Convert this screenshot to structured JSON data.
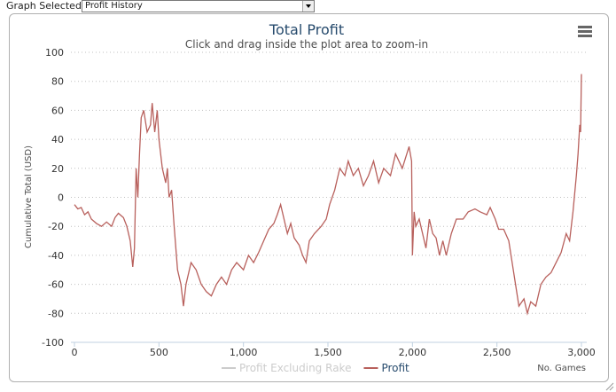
{
  "ui": {
    "label": "Graph Selected:",
    "selected": "Profit History"
  },
  "chart_data": {
    "type": "line",
    "title": "Total Profit",
    "subtitle": "Click and drag inside the plot area to zoom-in",
    "y_label": "Cumulative Total (USD)",
    "x_label": "No. Games",
    "xlim": [
      0,
      3000
    ],
    "ylim": [
      -100,
      100
    ],
    "xticks": [
      0,
      500,
      {
        "value": 1000,
        "label": "1,000"
      },
      {
        "value": 1500,
        "label": "1,500"
      },
      {
        "value": 2000,
        "label": "2,000"
      },
      {
        "value": 2500,
        "label": "2,500"
      },
      {
        "value": 3000,
        "label": "3,000"
      }
    ],
    "yticks": [
      -100,
      -80,
      -60,
      -40,
      -20,
      0,
      20,
      40,
      60,
      80,
      100
    ],
    "grid": true,
    "series": [
      {
        "name": "Profit Excluding Rake",
        "color": "#cccccc",
        "visible": false
      },
      {
        "name": "Profit",
        "color": "#b8605c",
        "visible": true,
        "x": [
          0,
          20,
          40,
          60,
          80,
          100,
          130,
          160,
          190,
          220,
          240,
          260,
          290,
          310,
          330,
          345,
          355,
          365,
          375,
          385,
          395,
          410,
          430,
          450,
          460,
          475,
          490,
          500,
          520,
          540,
          550,
          560,
          575,
          590,
          610,
          630,
          645,
          660,
          690,
          720,
          750,
          780,
          810,
          840,
          870,
          900,
          930,
          960,
          1000,
          1030,
          1060,
          1090,
          1120,
          1150,
          1180,
          1200,
          1220,
          1240,
          1260,
          1280,
          1300,
          1330,
          1350,
          1370,
          1390,
          1420,
          1460,
          1490,
          1510,
          1540,
          1570,
          1600,
          1620,
          1650,
          1680,
          1710,
          1740,
          1770,
          1800,
          1830,
          1870,
          1900,
          1940,
          1980,
          1995,
          2000,
          2010,
          2020,
          2040,
          2060,
          2080,
          2100,
          2120,
          2140,
          2160,
          2180,
          2200,
          2230,
          2260,
          2300,
          2330,
          2370,
          2400,
          2440,
          2460,
          2490,
          2510,
          2540,
          2570,
          2590,
          2610,
          2630,
          2660,
          2680,
          2700,
          2730,
          2760,
          2790,
          2820,
          2850,
          2880,
          2910,
          2930,
          2950,
          2970,
          2980,
          2990,
          2995,
          3000
        ],
        "values": [
          -5,
          -8,
          -7,
          -12,
          -10,
          -15,
          -18,
          -20,
          -17,
          -20,
          -14,
          -11,
          -14,
          -20,
          -30,
          -48,
          -35,
          20,
          0,
          30,
          55,
          60,
          45,
          50,
          65,
          45,
          60,
          40,
          20,
          10,
          20,
          0,
          5,
          -20,
          -50,
          -60,
          -75,
          -60,
          -45,
          -50,
          -60,
          -65,
          -68,
          -60,
          -55,
          -60,
          -50,
          -45,
          -50,
          -40,
          -45,
          -38,
          -30,
          -22,
          -18,
          -12,
          -5,
          -15,
          -25,
          -18,
          -28,
          -33,
          -40,
          -45,
          -30,
          -25,
          -20,
          -15,
          -5,
          5,
          20,
          15,
          25,
          15,
          20,
          8,
          15,
          25,
          10,
          20,
          15,
          30,
          20,
          35,
          25,
          -40,
          -10,
          -20,
          -15,
          -25,
          -35,
          -15,
          -25,
          -28,
          -40,
          -30,
          -40,
          -25,
          -15,
          -15,
          -10,
          -8,
          -10,
          -12,
          -7,
          -15,
          -22,
          -22,
          -30,
          -45,
          -60,
          -75,
          -70,
          -80,
          -72,
          -75,
          -60,
          -55,
          -52,
          -45,
          -38,
          -25,
          -30,
          -10,
          15,
          30,
          50,
          45,
          85
        ]
      }
    ]
  }
}
